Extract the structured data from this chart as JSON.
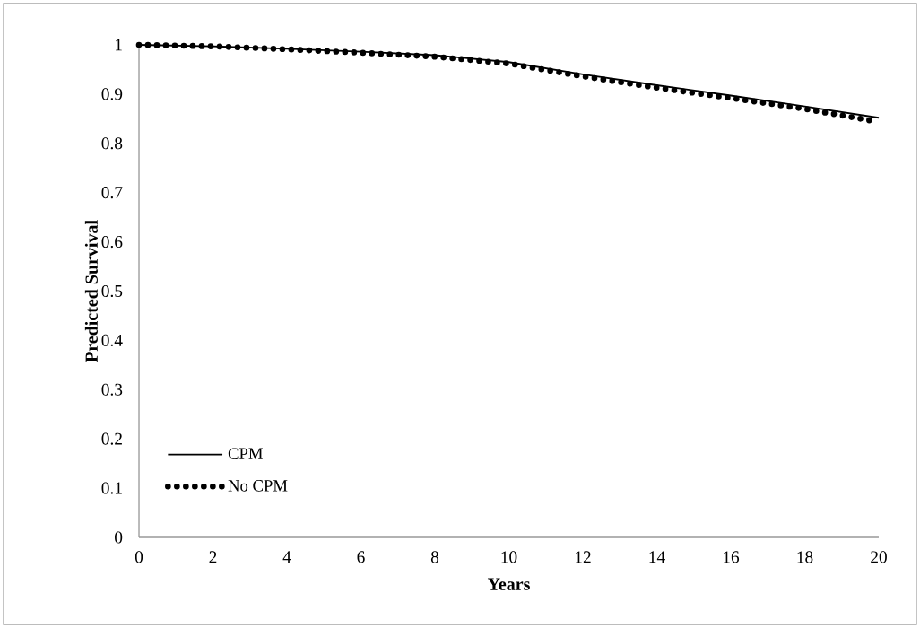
{
  "chart_data": {
    "type": "line",
    "xlabel": "Years",
    "ylabel": "Predicted Survival",
    "xlim": [
      0,
      20
    ],
    "ylim": [
      0,
      1
    ],
    "xticks": [
      0,
      2,
      4,
      6,
      8,
      10,
      12,
      14,
      16,
      18,
      20
    ],
    "yticks": [
      0,
      0.1,
      0.2,
      0.3,
      0.4,
      0.5,
      0.6,
      0.7,
      0.8,
      0.9,
      1
    ],
    "grid": false,
    "legend": "bottom left",
    "marker": "none",
    "series": [
      {
        "name": "CPM",
        "color": "#000000",
        "line_style": "solid",
        "x": [
          0,
          2,
          4,
          6,
          8,
          10,
          12,
          14,
          16,
          18,
          20
        ],
        "values": [
          1,
          0.997,
          0.992,
          0.986,
          0.979,
          0.965,
          0.94,
          0.918,
          0.897,
          0.875,
          0.852
        ]
      },
      {
        "name": "No CPM",
        "color": "#000000",
        "line_style": "dotted",
        "x": [
          0,
          2,
          4,
          6,
          8,
          10,
          12,
          14,
          16,
          18,
          19.8
        ],
        "values": [
          1,
          0.997,
          0.991,
          0.984,
          0.976,
          0.962,
          0.936,
          0.913,
          0.892,
          0.87,
          0.846
        ]
      }
    ]
  }
}
